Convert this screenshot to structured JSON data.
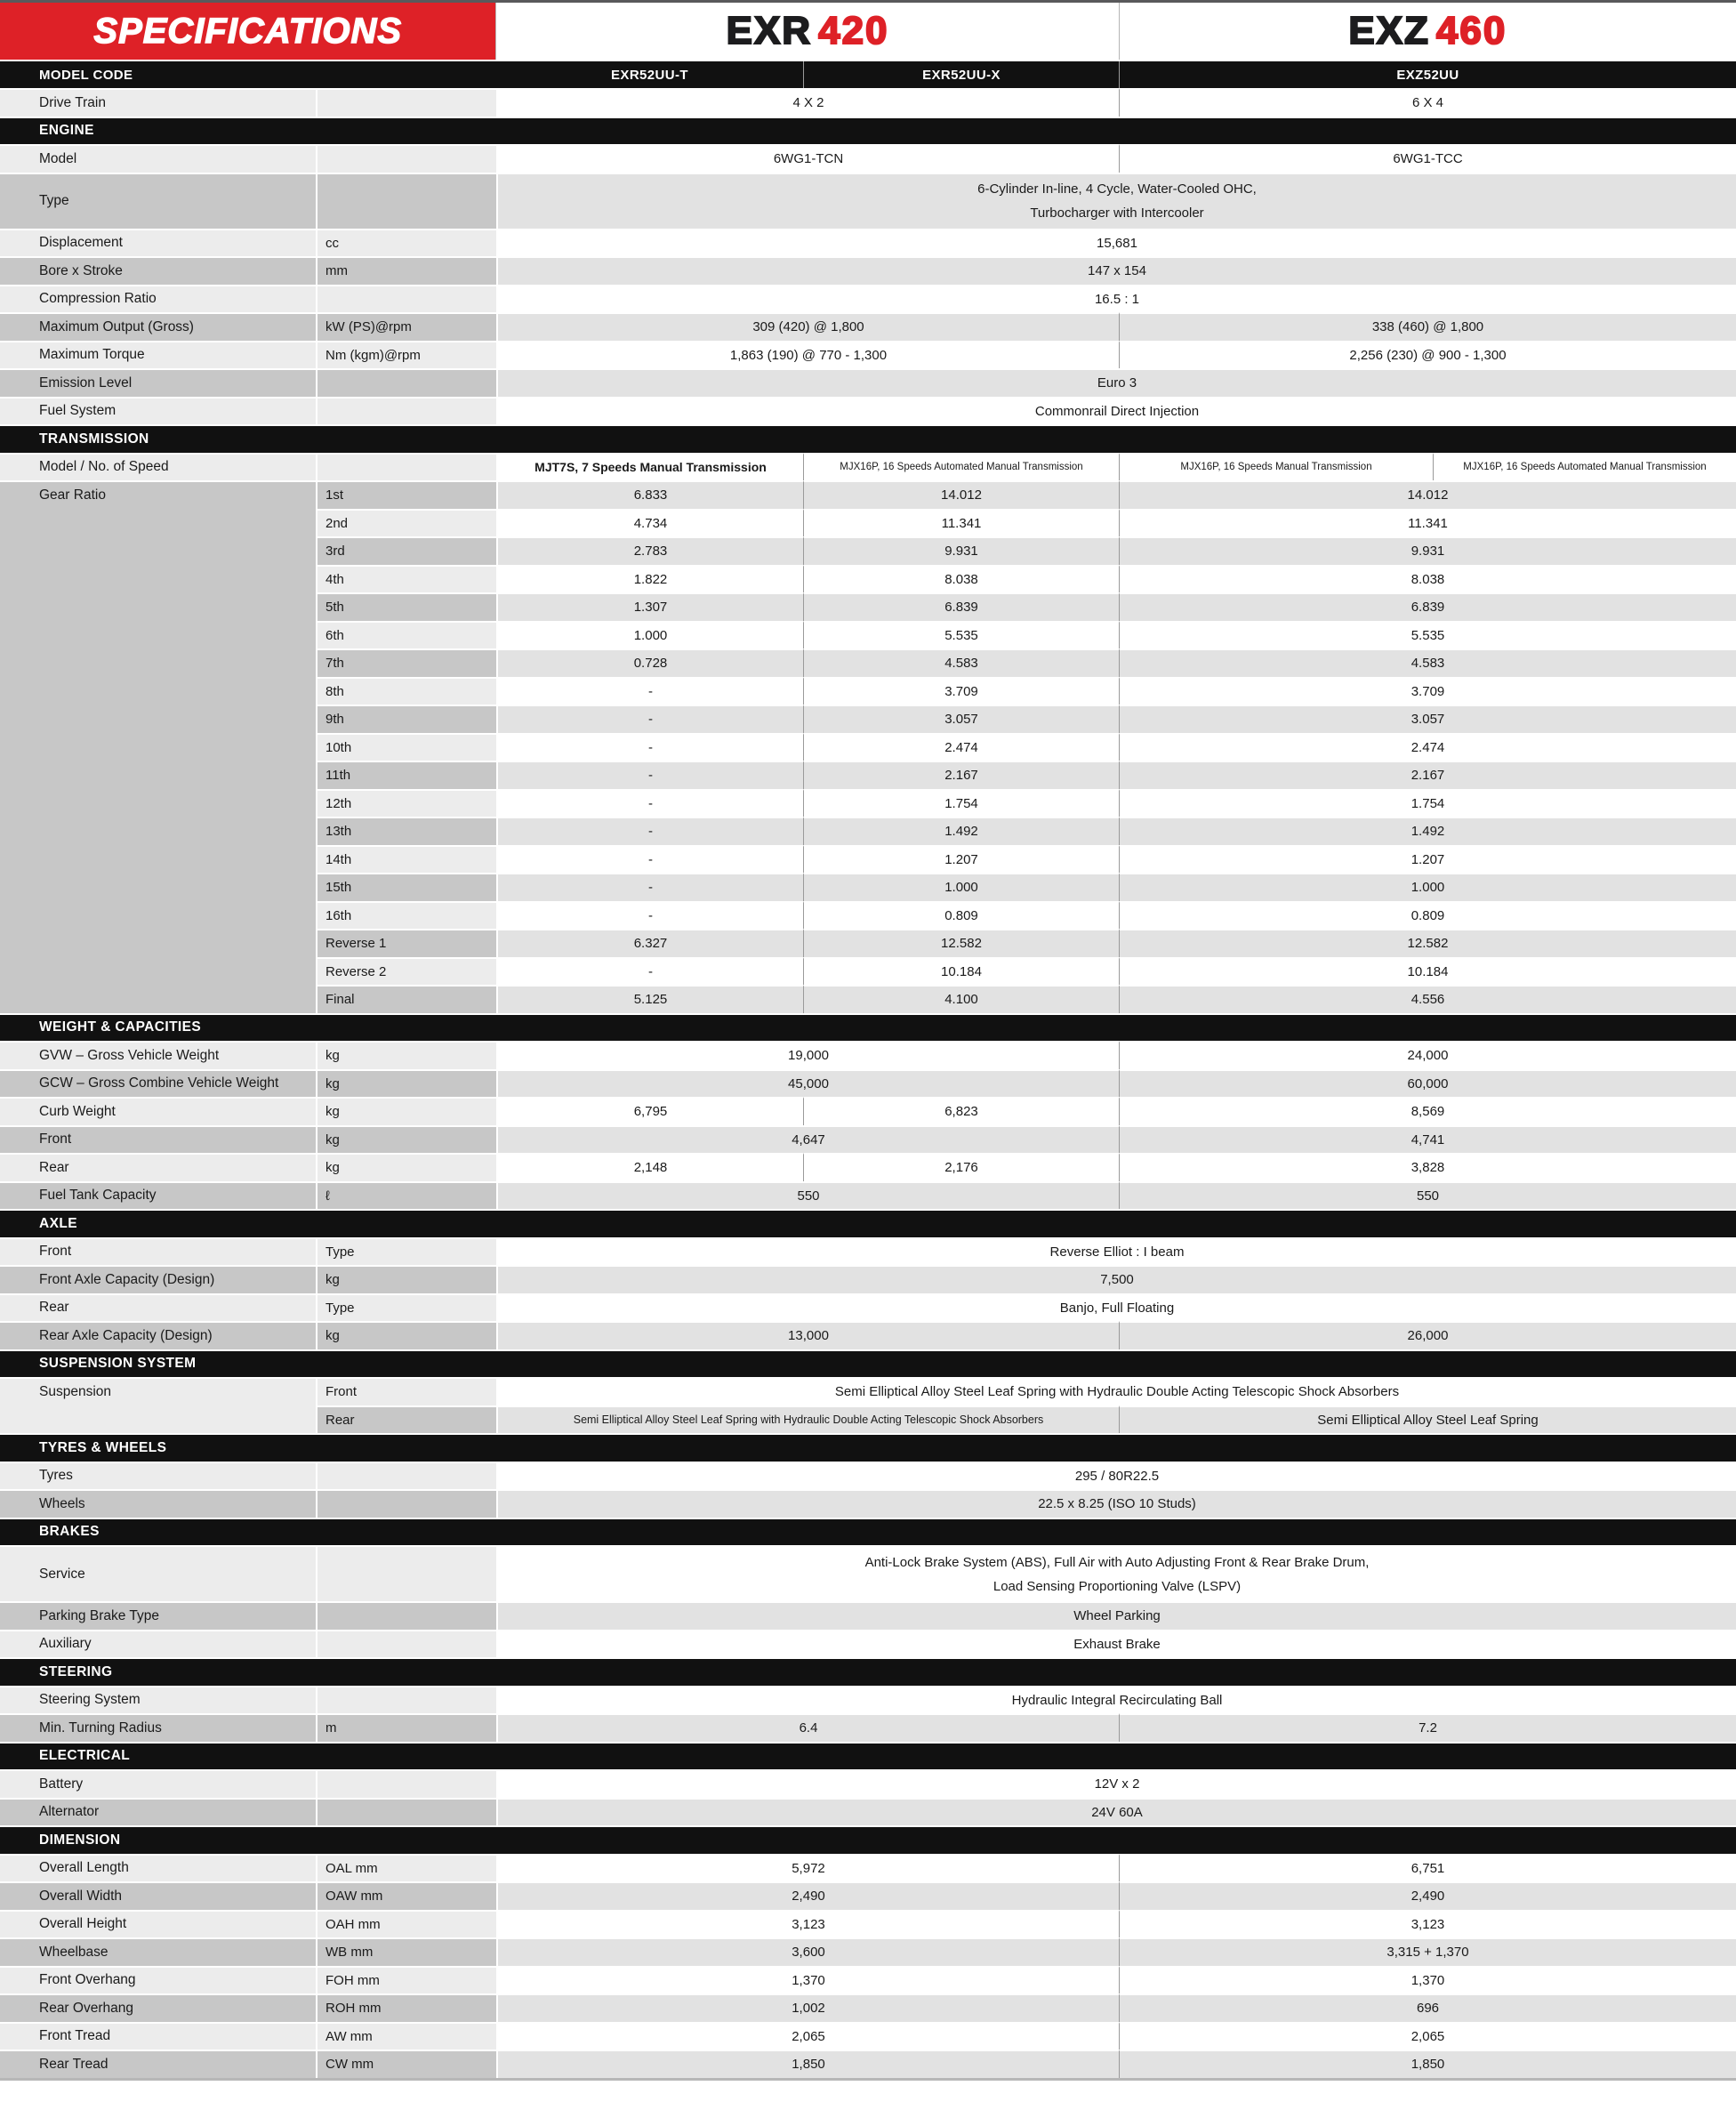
{
  "header": {
    "banner": "SPECIFICATIONS",
    "models": [
      {
        "prefix": "EXR",
        "number": "420"
      },
      {
        "prefix": "EXZ",
        "number": "460"
      }
    ]
  },
  "colors": {
    "accent_red": "#de2127",
    "bar_black": "#111111"
  },
  "rows": [
    {
      "kind": "modelbar",
      "label": "MODEL CODE",
      "cells": [
        {
          "span": "exr_t",
          "text": "EXR52UU-T"
        },
        {
          "span": "exr_x",
          "text": "EXR52UU-X"
        },
        {
          "span": "exz",
          "text": "EXZ52UU"
        }
      ]
    },
    {
      "kind": "row",
      "label": "Drive Train",
      "unit": "",
      "shade": "w",
      "cells": [
        {
          "span": "exr",
          "text": "4 X 2"
        },
        {
          "span": "exz",
          "text": "6 X 4"
        }
      ]
    },
    {
      "kind": "section",
      "label": "ENGINE"
    },
    {
      "kind": "row",
      "label": "Model",
      "unit": "",
      "shade": "w",
      "cells": [
        {
          "span": "exr",
          "text": "6WG1-TCN"
        },
        {
          "span": "exz",
          "text": "6WG1-TCC"
        }
      ]
    },
    {
      "kind": "row",
      "label": "Type",
      "unit": "",
      "shade": "g",
      "h2": true,
      "cells": [
        {
          "span": "full",
          "text": "6-Cylinder In-line, 4 Cycle, Water-Cooled OHC,\nTurbocharger with Intercooler"
        }
      ]
    },
    {
      "kind": "row",
      "label": "Displacement",
      "unit": "cc",
      "shade": "w",
      "cells": [
        {
          "span": "full",
          "text": "15,681"
        }
      ]
    },
    {
      "kind": "row",
      "label": "Bore x Stroke",
      "unit": "mm",
      "shade": "g",
      "cells": [
        {
          "span": "full",
          "text": "147 x 154"
        }
      ]
    },
    {
      "kind": "row",
      "label": "Compression Ratio",
      "unit": "",
      "shade": "w",
      "cells": [
        {
          "span": "full",
          "text": "16.5 : 1"
        }
      ]
    },
    {
      "kind": "row",
      "label": "Maximum Output (Gross)",
      "unit": "kW (PS)@rpm",
      "shade": "g",
      "cells": [
        {
          "span": "exr",
          "text": "309 (420) @ 1,800"
        },
        {
          "span": "exz",
          "text": "338 (460) @ 1,800"
        }
      ]
    },
    {
      "kind": "row",
      "label": "Maximum Torque",
      "unit": "Nm (kgm)@rpm",
      "shade": "w",
      "cells": [
        {
          "span": "exr",
          "text": "1,863 (190) @ 770 - 1,300"
        },
        {
          "span": "exz",
          "text": "2,256 (230) @ 900 - 1,300"
        }
      ]
    },
    {
      "kind": "row",
      "label": "Emission Level",
      "unit": "",
      "shade": "g",
      "cells": [
        {
          "span": "full",
          "text": "Euro 3"
        }
      ]
    },
    {
      "kind": "row",
      "label": "Fuel System",
      "unit": "",
      "shade": "w",
      "cells": [
        {
          "span": "full",
          "text": "Commonrail Direct Injection"
        }
      ]
    },
    {
      "kind": "section",
      "label": "TRANSMISSION"
    },
    {
      "kind": "row",
      "label": "Model / No. of Speed",
      "unit": "",
      "shade": "w",
      "cells": [
        {
          "span": "exr_t",
          "text": "MJT7S, 7 Speeds Manual Transmission",
          "size": "f14"
        },
        {
          "span": "exr_x",
          "text": "MJX16P, 16 Speeds Automated Manual Transmission",
          "size": "f11"
        },
        {
          "span": "exz_m",
          "text": "MJX16P, 16 Speeds Manual Transmission",
          "size": "f11"
        },
        {
          "span": "exz_a",
          "text": "MJX16P, 16 Speeds Automated Manual Transmission",
          "size": "f11"
        }
      ]
    },
    {
      "kind": "row",
      "label": "Gear Ratio",
      "unit": "1st",
      "shade": "g",
      "block": "gear",
      "bstart": true,
      "cells": [
        {
          "span": "exr_t",
          "text": "6.833"
        },
        {
          "span": "exr_x",
          "text": "14.012"
        },
        {
          "span": "exz",
          "text": "14.012"
        }
      ]
    },
    {
      "kind": "row",
      "label": "",
      "unit": "2nd",
      "shade": "w",
      "block": "gear",
      "cells": [
        {
          "span": "exr_t",
          "text": "4.734"
        },
        {
          "span": "exr_x",
          "text": "11.341"
        },
        {
          "span": "exz",
          "text": "11.341"
        }
      ]
    },
    {
      "kind": "row",
      "label": "",
      "unit": "3rd",
      "shade": "g",
      "block": "gear",
      "cells": [
        {
          "span": "exr_t",
          "text": "2.783"
        },
        {
          "span": "exr_x",
          "text": "9.931"
        },
        {
          "span": "exz",
          "text": "9.931"
        }
      ]
    },
    {
      "kind": "row",
      "label": "",
      "unit": "4th",
      "shade": "w",
      "block": "gear",
      "cells": [
        {
          "span": "exr_t",
          "text": "1.822"
        },
        {
          "span": "exr_x",
          "text": "8.038"
        },
        {
          "span": "exz",
          "text": "8.038"
        }
      ]
    },
    {
      "kind": "row",
      "label": "",
      "unit": "5th",
      "shade": "g",
      "block": "gear",
      "cells": [
        {
          "span": "exr_t",
          "text": "1.307"
        },
        {
          "span": "exr_x",
          "text": "6.839"
        },
        {
          "span": "exz",
          "text": "6.839"
        }
      ]
    },
    {
      "kind": "row",
      "label": "",
      "unit": "6th",
      "shade": "w",
      "block": "gear",
      "cells": [
        {
          "span": "exr_t",
          "text": "1.000"
        },
        {
          "span": "exr_x",
          "text": "5.535"
        },
        {
          "span": "exz",
          "text": "5.535"
        }
      ]
    },
    {
      "kind": "row",
      "label": "",
      "unit": "7th",
      "shade": "g",
      "block": "gear",
      "cells": [
        {
          "span": "exr_t",
          "text": "0.728"
        },
        {
          "span": "exr_x",
          "text": "4.583"
        },
        {
          "span": "exz",
          "text": "4.583"
        }
      ]
    },
    {
      "kind": "row",
      "label": "",
      "unit": "8th",
      "shade": "w",
      "block": "gear",
      "cells": [
        {
          "span": "exr_t",
          "text": "-"
        },
        {
          "span": "exr_x",
          "text": "3.709"
        },
        {
          "span": "exz",
          "text": "3.709"
        }
      ]
    },
    {
      "kind": "row",
      "label": "",
      "unit": "9th",
      "shade": "g",
      "block": "gear",
      "cells": [
        {
          "span": "exr_t",
          "text": "-"
        },
        {
          "span": "exr_x",
          "text": "3.057"
        },
        {
          "span": "exz",
          "text": "3.057"
        }
      ]
    },
    {
      "kind": "row",
      "label": "",
      "unit": "10th",
      "shade": "w",
      "block": "gear",
      "cells": [
        {
          "span": "exr_t",
          "text": "-"
        },
        {
          "span": "exr_x",
          "text": "2.474"
        },
        {
          "span": "exz",
          "text": "2.474"
        }
      ]
    },
    {
      "kind": "row",
      "label": "",
      "unit": "11th",
      "shade": "g",
      "block": "gear",
      "cells": [
        {
          "span": "exr_t",
          "text": "-"
        },
        {
          "span": "exr_x",
          "text": "2.167"
        },
        {
          "span": "exz",
          "text": "2.167"
        }
      ]
    },
    {
      "kind": "row",
      "label": "",
      "unit": "12th",
      "shade": "w",
      "block": "gear",
      "cells": [
        {
          "span": "exr_t",
          "text": "-"
        },
        {
          "span": "exr_x",
          "text": "1.754"
        },
        {
          "span": "exz",
          "text": "1.754"
        }
      ]
    },
    {
      "kind": "row",
      "label": "",
      "unit": "13th",
      "shade": "g",
      "block": "gear",
      "cells": [
        {
          "span": "exr_t",
          "text": "-"
        },
        {
          "span": "exr_x",
          "text": "1.492"
        },
        {
          "span": "exz",
          "text": "1.492"
        }
      ]
    },
    {
      "kind": "row",
      "label": "",
      "unit": "14th",
      "shade": "w",
      "block": "gear",
      "cells": [
        {
          "span": "exr_t",
          "text": "-"
        },
        {
          "span": "exr_x",
          "text": "1.207"
        },
        {
          "span": "exz",
          "text": "1.207"
        }
      ]
    },
    {
      "kind": "row",
      "label": "",
      "unit": "15th",
      "shade": "g",
      "block": "gear",
      "cells": [
        {
          "span": "exr_t",
          "text": "-"
        },
        {
          "span": "exr_x",
          "text": "1.000"
        },
        {
          "span": "exz",
          "text": "1.000"
        }
      ]
    },
    {
      "kind": "row",
      "label": "",
      "unit": "16th",
      "shade": "w",
      "block": "gear",
      "cells": [
        {
          "span": "exr_t",
          "text": "-"
        },
        {
          "span": "exr_x",
          "text": "0.809"
        },
        {
          "span": "exz",
          "text": "0.809"
        }
      ]
    },
    {
      "kind": "row",
      "label": "",
      "unit": "Reverse 1",
      "shade": "g",
      "block": "gear",
      "cells": [
        {
          "span": "exr_t",
          "text": "6.327"
        },
        {
          "span": "exr_x",
          "text": "12.582"
        },
        {
          "span": "exz",
          "text": "12.582"
        }
      ]
    },
    {
      "kind": "row",
      "label": "",
      "unit": "Reverse 2",
      "shade": "w",
      "block": "gear",
      "cells": [
        {
          "span": "exr_t",
          "text": "-"
        },
        {
          "span": "exr_x",
          "text": "10.184"
        },
        {
          "span": "exz",
          "text": "10.184"
        }
      ]
    },
    {
      "kind": "row",
      "label": "",
      "unit": "Final",
      "shade": "g",
      "block": "gear",
      "cells": [
        {
          "span": "exr_t",
          "text": "5.125"
        },
        {
          "span": "exr_x",
          "text": "4.100"
        },
        {
          "span": "exz",
          "text": "4.556"
        }
      ]
    },
    {
      "kind": "section",
      "label": "WEIGHT & CAPACITIES"
    },
    {
      "kind": "row",
      "label": "GVW – Gross Vehicle Weight",
      "unit": "kg",
      "shade": "w",
      "cells": [
        {
          "span": "exr",
          "text": "19,000"
        },
        {
          "span": "exz",
          "text": "24,000"
        }
      ]
    },
    {
      "kind": "row",
      "label": "GCW – Gross Combine Vehicle Weight",
      "unit": "kg",
      "shade": "g",
      "cells": [
        {
          "span": "exr",
          "text": "45,000"
        },
        {
          "span": "exz",
          "text": "60,000"
        }
      ]
    },
    {
      "kind": "row",
      "label": "Curb Weight",
      "unit": "kg",
      "shade": "w",
      "cells": [
        {
          "span": "exr_t",
          "text": "6,795"
        },
        {
          "span": "exr_x",
          "text": "6,823"
        },
        {
          "span": "exz",
          "text": "8,569"
        }
      ]
    },
    {
      "kind": "row",
      "label": "Front",
      "unit": "kg",
      "shade": "g",
      "cells": [
        {
          "span": "exr",
          "text": "4,647"
        },
        {
          "span": "exz",
          "text": "4,741"
        }
      ]
    },
    {
      "kind": "row",
      "label": "Rear",
      "unit": "kg",
      "shade": "w",
      "cells": [
        {
          "span": "exr_t",
          "text": "2,148"
        },
        {
          "span": "exr_x",
          "text": "2,176"
        },
        {
          "span": "exz",
          "text": "3,828"
        }
      ]
    },
    {
      "kind": "row",
      "label": "Fuel Tank Capacity",
      "unit": "ℓ",
      "shade": "g",
      "cells": [
        {
          "span": "exr",
          "text": "550"
        },
        {
          "span": "exz",
          "text": "550"
        }
      ]
    },
    {
      "kind": "section",
      "label": "AXLE"
    },
    {
      "kind": "row",
      "label": "Front",
      "unit": "Type",
      "shade": "w",
      "cells": [
        {
          "span": "full",
          "text": "Reverse Elliot : I beam"
        }
      ]
    },
    {
      "kind": "row",
      "label": "Front Axle Capacity (Design)",
      "unit": "kg",
      "shade": "g",
      "cells": [
        {
          "span": "full",
          "text": "7,500"
        }
      ]
    },
    {
      "kind": "row",
      "label": "Rear",
      "unit": "Type",
      "shade": "w",
      "cells": [
        {
          "span": "full",
          "text": "Banjo, Full Floating"
        }
      ]
    },
    {
      "kind": "row",
      "label": "Rear Axle Capacity (Design)",
      "unit": "kg",
      "shade": "g",
      "cells": [
        {
          "span": "exr",
          "text": "13,000"
        },
        {
          "span": "exz",
          "text": "26,000"
        }
      ]
    },
    {
      "kind": "section",
      "label": "SUSPENSION SYSTEM"
    },
    {
      "kind": "row",
      "label": "Suspension",
      "unit": "Front",
      "shade": "w",
      "block": "susp",
      "bstart": true,
      "cells": [
        {
          "span": "full",
          "text": "Semi Elliptical Alloy Steel Leaf Spring with Hydraulic Double Acting Telescopic Shock Absorbers"
        }
      ]
    },
    {
      "kind": "row",
      "label": "",
      "unit": "Rear",
      "shade": "g",
      "block": "susp",
      "cells": [
        {
          "span": "exr",
          "text": "Semi Elliptical Alloy Steel Leaf Spring with Hydraulic Double Acting Telescopic Shock Absorbers",
          "size": "f12"
        },
        {
          "span": "exz",
          "text": "Semi Elliptical Alloy Steel Leaf Spring"
        }
      ]
    },
    {
      "kind": "section",
      "label": "TYRES & WHEELS"
    },
    {
      "kind": "row",
      "label": "Tyres",
      "unit": "",
      "shade": "w",
      "cells": [
        {
          "span": "full",
          "text": "295 / 80R22.5"
        }
      ]
    },
    {
      "kind": "row",
      "label": "Wheels",
      "unit": "",
      "shade": "g",
      "cells": [
        {
          "span": "full",
          "text": "22.5 x 8.25 (ISO 10 Studs)"
        }
      ]
    },
    {
      "kind": "section",
      "label": "BRAKES"
    },
    {
      "kind": "row",
      "label": "Service",
      "unit": "",
      "shade": "w",
      "h2": true,
      "cells": [
        {
          "span": "full",
          "text": "Anti-Lock Brake System (ABS), Full Air with Auto Adjusting Front & Rear Brake Drum,\nLoad Sensing Proportioning Valve (LSPV)"
        }
      ]
    },
    {
      "kind": "row",
      "label": "Parking Brake Type",
      "unit": "",
      "shade": "g",
      "cells": [
        {
          "span": "full",
          "text": "Wheel Parking"
        }
      ]
    },
    {
      "kind": "row",
      "label": "Auxiliary",
      "unit": "",
      "shade": "w",
      "cells": [
        {
          "span": "full",
          "text": "Exhaust Brake"
        }
      ]
    },
    {
      "kind": "section",
      "label": "STEERING"
    },
    {
      "kind": "row",
      "label": "Steering System",
      "unit": "",
      "shade": "w",
      "cells": [
        {
          "span": "full",
          "text": "Hydraulic Integral Recirculating Ball"
        }
      ]
    },
    {
      "kind": "row",
      "label": "Min. Turning Radius",
      "unit": "m",
      "shade": "g",
      "cells": [
        {
          "span": "exr",
          "text": "6.4"
        },
        {
          "span": "exz",
          "text": "7.2"
        }
      ]
    },
    {
      "kind": "section",
      "label": "ELECTRICAL"
    },
    {
      "kind": "row",
      "label": "Battery",
      "unit": "",
      "shade": "w",
      "cells": [
        {
          "span": "full",
          "text": "12V x 2"
        }
      ]
    },
    {
      "kind": "row",
      "label": "Alternator",
      "unit": "",
      "shade": "g",
      "cells": [
        {
          "span": "full",
          "text": "24V 60A"
        }
      ]
    },
    {
      "kind": "section",
      "label": "DIMENSION"
    },
    {
      "kind": "row",
      "label": "Overall Length",
      "unit": "OAL mm",
      "shade": "w",
      "cells": [
        {
          "span": "exr",
          "text": "5,972"
        },
        {
          "span": "exz",
          "text": "6,751"
        }
      ]
    },
    {
      "kind": "row",
      "label": "Overall Width",
      "unit": "OAW mm",
      "shade": "g",
      "cells": [
        {
          "span": "exr",
          "text": "2,490"
        },
        {
          "span": "exz",
          "text": "2,490"
        }
      ]
    },
    {
      "kind": "row",
      "label": "Overall Height",
      "unit": "OAH mm",
      "shade": "w",
      "cells": [
        {
          "span": "exr",
          "text": "3,123"
        },
        {
          "span": "exz",
          "text": "3,123"
        }
      ]
    },
    {
      "kind": "row",
      "label": "Wheelbase",
      "unit": "WB mm",
      "shade": "g",
      "cells": [
        {
          "span": "exr",
          "text": "3,600"
        },
        {
          "span": "exz",
          "text": "3,315 + 1,370"
        }
      ]
    },
    {
      "kind": "row",
      "label": "Front Overhang",
      "unit": "FOH mm",
      "shade": "w",
      "cells": [
        {
          "span": "exr",
          "text": "1,370"
        },
        {
          "span": "exz",
          "text": "1,370"
        }
      ]
    },
    {
      "kind": "row",
      "label": "Rear Overhang",
      "unit": "ROH mm",
      "shade": "g",
      "cells": [
        {
          "span": "exr",
          "text": "1,002"
        },
        {
          "span": "exz",
          "text": "696"
        }
      ]
    },
    {
      "kind": "row",
      "label": "Front Tread",
      "unit": "AW mm",
      "shade": "w",
      "cells": [
        {
          "span": "exr",
          "text": "2,065"
        },
        {
          "span": "exz",
          "text": "2,065"
        }
      ]
    },
    {
      "kind": "row",
      "label": "Rear Tread",
      "unit": "CW mm",
      "shade": "g",
      "cells": [
        {
          "span": "exr",
          "text": "1,850"
        },
        {
          "span": "exz",
          "text": "1,850"
        }
      ]
    }
  ]
}
